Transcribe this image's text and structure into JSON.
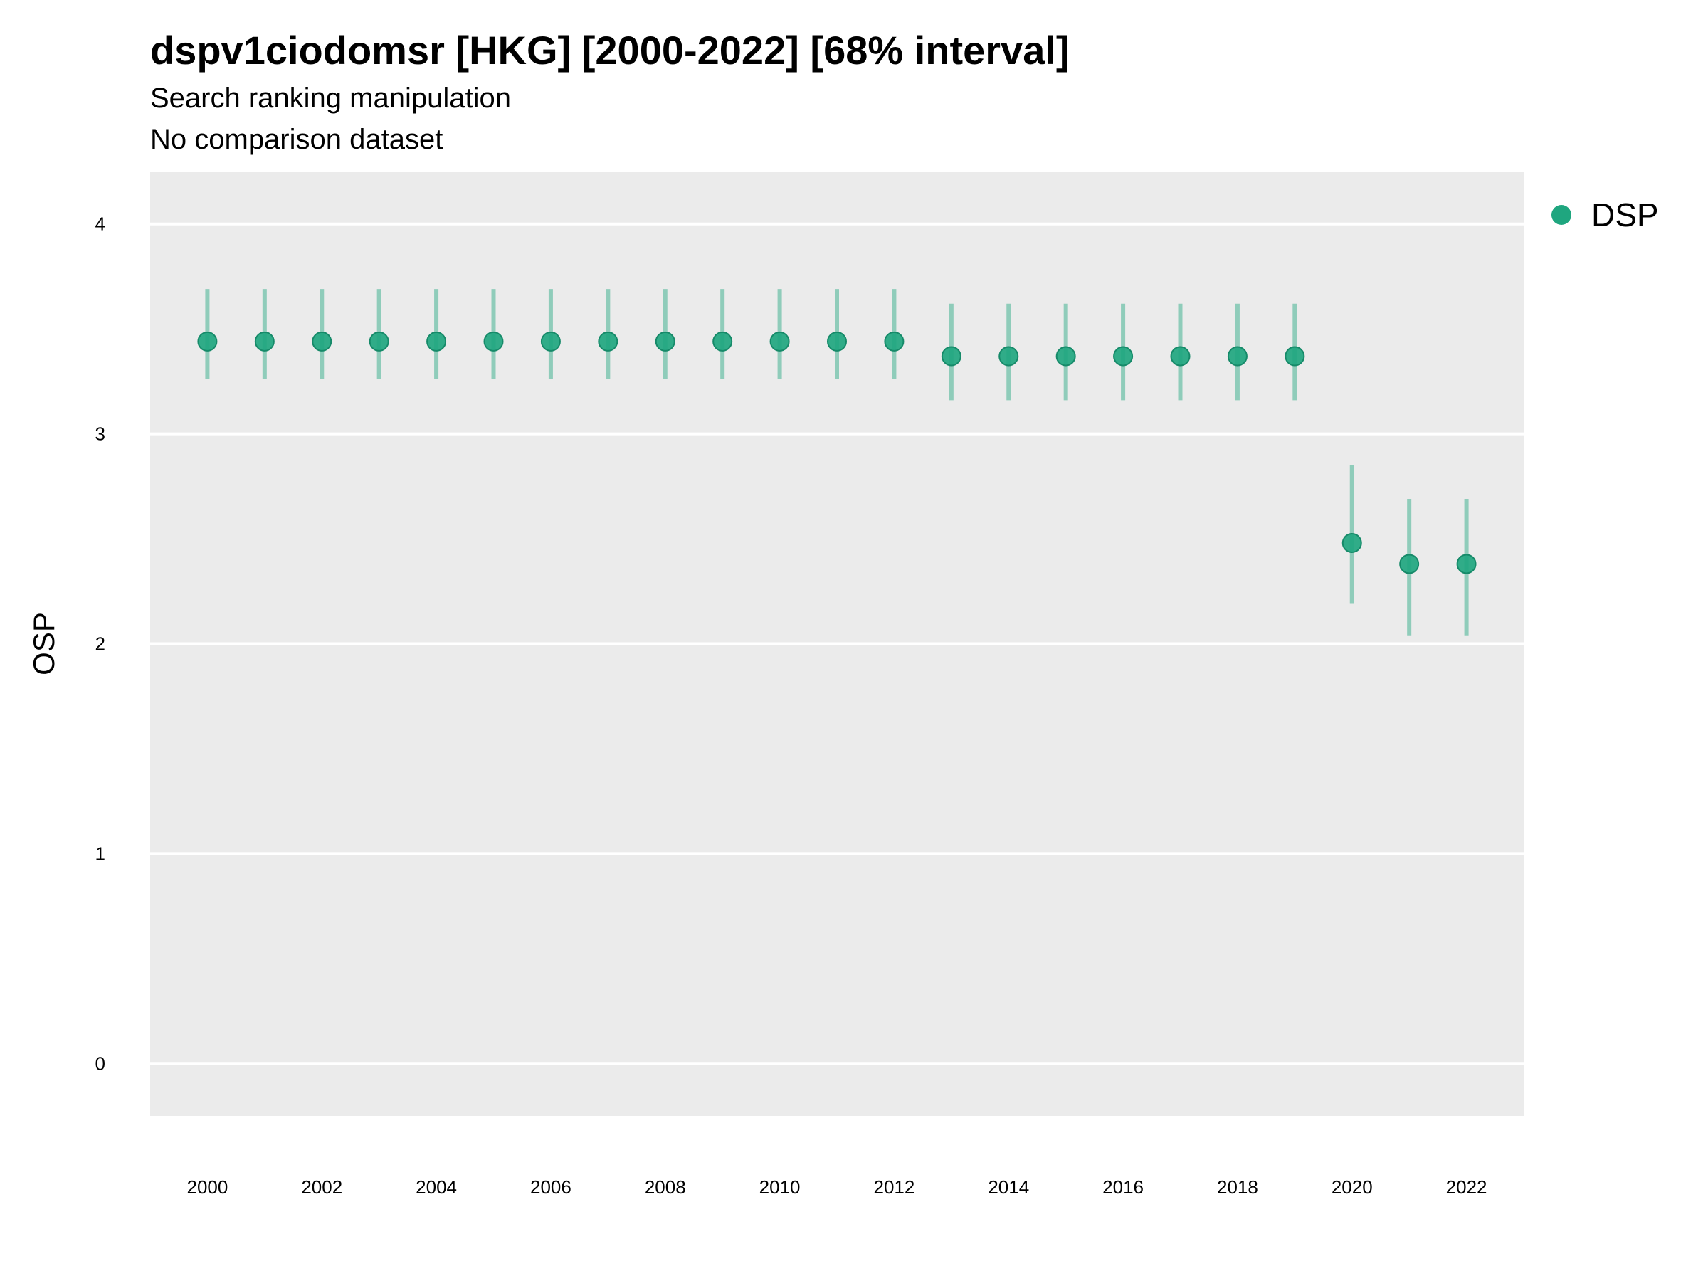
{
  "chart_data": {
    "type": "scatter",
    "title": "dspv1ciodomsr [HKG] [2000-2022] [68% interval]",
    "subtitle": "Search ranking manipulation",
    "caption": "No comparison dataset",
    "xlabel": "",
    "ylabel": "OSP",
    "xlim": [
      1999,
      2023
    ],
    "ylim": [
      -0.25,
      4.25
    ],
    "yticks": [
      0,
      1,
      2,
      3,
      4
    ],
    "xticks": [
      2000,
      2002,
      2004,
      2006,
      2008,
      2010,
      2012,
      2014,
      2016,
      2018,
      2020,
      2022
    ],
    "grid": true,
    "legend_position": "right",
    "series": [
      {
        "name": "DSP",
        "color": "#1fa67f",
        "points": [
          {
            "x": 2000,
            "y": 3.44,
            "low": 3.26,
            "high": 3.69
          },
          {
            "x": 2001,
            "y": 3.44,
            "low": 3.26,
            "high": 3.69
          },
          {
            "x": 2002,
            "y": 3.44,
            "low": 3.26,
            "high": 3.69
          },
          {
            "x": 2003,
            "y": 3.44,
            "low": 3.26,
            "high": 3.69
          },
          {
            "x": 2004,
            "y": 3.44,
            "low": 3.26,
            "high": 3.69
          },
          {
            "x": 2005,
            "y": 3.44,
            "low": 3.26,
            "high": 3.69
          },
          {
            "x": 2006,
            "y": 3.44,
            "low": 3.26,
            "high": 3.69
          },
          {
            "x": 2007,
            "y": 3.44,
            "low": 3.26,
            "high": 3.69
          },
          {
            "x": 2008,
            "y": 3.44,
            "low": 3.26,
            "high": 3.69
          },
          {
            "x": 2009,
            "y": 3.44,
            "low": 3.26,
            "high": 3.69
          },
          {
            "x": 2010,
            "y": 3.44,
            "low": 3.26,
            "high": 3.69
          },
          {
            "x": 2011,
            "y": 3.44,
            "low": 3.26,
            "high": 3.69
          },
          {
            "x": 2012,
            "y": 3.44,
            "low": 3.26,
            "high": 3.69
          },
          {
            "x": 2013,
            "y": 3.37,
            "low": 3.16,
            "high": 3.62
          },
          {
            "x": 2014,
            "y": 3.37,
            "low": 3.16,
            "high": 3.62
          },
          {
            "x": 2015,
            "y": 3.37,
            "low": 3.16,
            "high": 3.62
          },
          {
            "x": 2016,
            "y": 3.37,
            "low": 3.16,
            "high": 3.62
          },
          {
            "x": 2017,
            "y": 3.37,
            "low": 3.16,
            "high": 3.62
          },
          {
            "x": 2018,
            "y": 3.37,
            "low": 3.16,
            "high": 3.62
          },
          {
            "x": 2019,
            "y": 3.37,
            "low": 3.16,
            "high": 3.62
          },
          {
            "x": 2020,
            "y": 2.48,
            "low": 2.19,
            "high": 2.85
          },
          {
            "x": 2021,
            "y": 2.38,
            "low": 2.04,
            "high": 2.69
          },
          {
            "x": 2022,
            "y": 2.38,
            "low": 2.04,
            "high": 2.69
          }
        ]
      }
    ]
  }
}
